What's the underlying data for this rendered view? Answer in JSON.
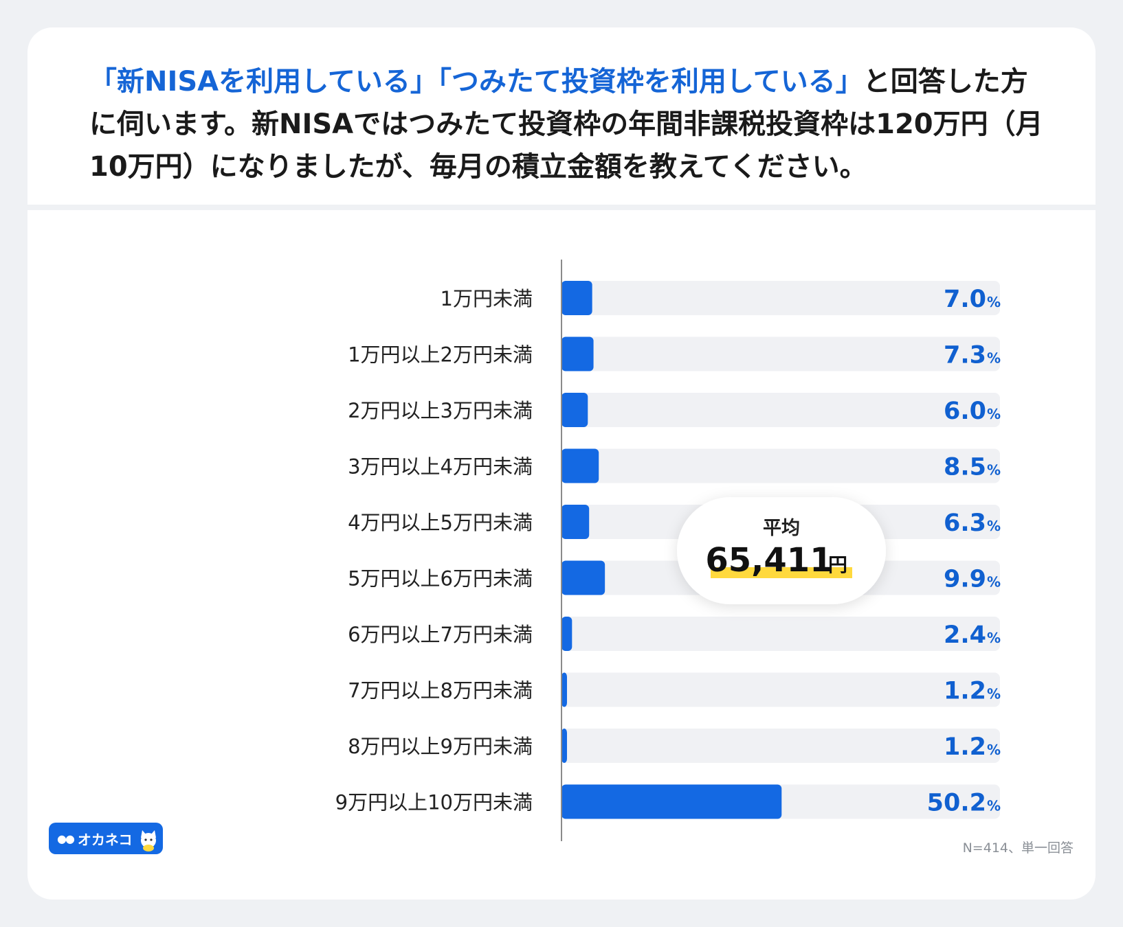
{
  "question": {
    "q1": "「新NISAを利用している」",
    "q2": "「つみたて投資枠を利用している」",
    "rest": "と回答した方に伺います。新NISAではつみたて投資枠の年間非課税投資枠は120万円（月10万円）になりましたが、毎月の積立金額を教えてください。"
  },
  "chart_data": {
    "type": "bar",
    "orientation": "horizontal",
    "categories": [
      "1万円未満",
      "1万円以上2万円未満",
      "2万円以上3万円未満",
      "3万円以上4万円未満",
      "4万円以上5万円未満",
      "5万円以上6万円未満",
      "6万円以上7万円未満",
      "7万円以上8万円未満",
      "8万円以上9万円未満",
      "9万円以上10万円未満"
    ],
    "values": [
      7.0,
      7.3,
      6.0,
      8.5,
      6.3,
      9.9,
      2.4,
      1.2,
      1.2,
      50.2
    ],
    "value_labels": [
      "7.0",
      "7.3",
      "6.0",
      "8.5",
      "6.3",
      "9.9",
      "2.4",
      "1.2",
      "1.2",
      "50.2"
    ],
    "unit": "%",
    "xlim": [
      0,
      100
    ],
    "average": {
      "label": "平均",
      "value": "65,411",
      "unit": "円"
    }
  },
  "logo": {
    "text": "オカネコ"
  },
  "footnote": "N=414、単一回答",
  "colors": {
    "bar": "#1469e3",
    "track": "#f0f1f4",
    "value": "#1060d0",
    "highlight": "#ffd93d"
  }
}
